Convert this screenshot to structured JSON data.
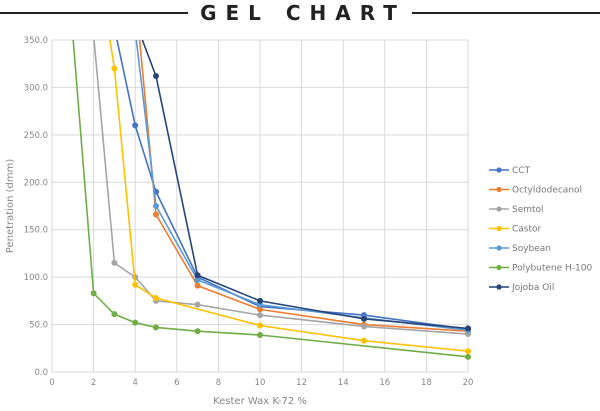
{
  "title": "GEL CHART",
  "chart_data": {
    "type": "line",
    "title": "GEL CHART",
    "xlabel": "Kester Wax K-72 %",
    "ylabel": "Penetration (dmm)",
    "xlim": [
      0,
      20
    ],
    "ylim": [
      0,
      350
    ],
    "xticks": [
      "0",
      "2",
      "4",
      "6",
      "8",
      "10",
      "12",
      "14",
      "16",
      "18",
      "20"
    ],
    "yticks": [
      "0.0",
      "50.0",
      "100.0",
      "150.0",
      "200.0",
      "250.0",
      "300.0",
      "350.0"
    ],
    "grid": true,
    "legend": "right",
    "series": [
      {
        "name": "CCT",
        "color": "#4472C4",
        "x": [
          3,
          4,
          5,
          7,
          10,
          15,
          20
        ],
        "y": [
          363,
          260,
          190,
          100,
          69,
          60,
          45
        ]
      },
      {
        "name": "Octyldodecanol",
        "color": "#ED7D31",
        "x": [
          4,
          5,
          7,
          10,
          15,
          20
        ],
        "y": [
          400,
          166,
          91,
          66,
          50,
          43
        ]
      },
      {
        "name": "Semtol",
        "color": "#A5A5A5",
        "x": [
          2,
          3,
          4,
          5,
          7,
          10,
          15,
          20
        ],
        "y": [
          355,
          115,
          100,
          75,
          71,
          60,
          48,
          40
        ]
      },
      {
        "name": "Castor",
        "color": "#FFC000",
        "x": [
          2,
          3,
          4,
          5,
          10,
          15,
          20
        ],
        "y": [
          460,
          320,
          92,
          78,
          49,
          33,
          22
        ]
      },
      {
        "name": "Soybean",
        "color": "#5B9BD5",
        "x": [
          4,
          5,
          7,
          10,
          15,
          20
        ],
        "y": [
          360,
          175,
          97,
          71,
          57,
          44
        ]
      },
      {
        "name": "Polybutene H-100",
        "color": "#70AD47",
        "x": [
          1,
          2,
          3,
          4,
          5,
          7,
          10,
          20
        ],
        "y": [
          355,
          83,
          61,
          52,
          47,
          43,
          39,
          16
        ]
      },
      {
        "name": "Jojoba Oil",
        "color": "#264478",
        "x": [
          4,
          5,
          7,
          10,
          15,
          20
        ],
        "y": [
          370,
          312,
          102,
          75,
          56,
          46
        ]
      }
    ]
  }
}
